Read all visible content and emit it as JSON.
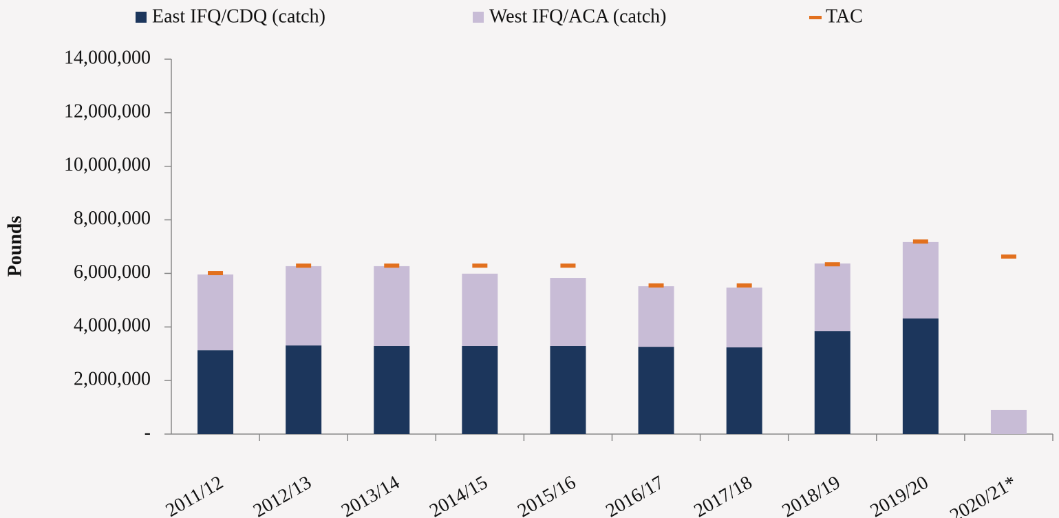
{
  "chart_data": {
    "type": "bar",
    "stacked": true,
    "y_label": "Pounds",
    "categories": [
      "2011/12",
      "2012/13",
      "2013/14",
      "2014/15",
      "2015/16",
      "2016/17",
      "2017/18",
      "2018/19",
      "2019/20",
      "2020/21*"
    ],
    "series": [
      {
        "name": "East IFQ/CDQ (catch)",
        "color": "#1c365c",
        "values": [
          3130000,
          3310000,
          3290000,
          3290000,
          3290000,
          3260000,
          3240000,
          3850000,
          4320000,
          0
        ]
      },
      {
        "name": "West IFQ/ACA (catch)",
        "color": "#c8bcd6",
        "values": [
          2830000,
          2960000,
          2980000,
          2700000,
          2540000,
          2260000,
          2230000,
          2520000,
          2850000,
          900000
        ]
      },
      {
        "name": "TAC",
        "color": "#e2701e",
        "marker": "dash",
        "values": [
          6010000,
          6290000,
          6290000,
          6290000,
          6290000,
          5550000,
          5550000,
          6340000,
          7190000,
          6630000
        ]
      }
    ],
    "ylim": [
      0,
      14000000
    ],
    "yticks": [
      {
        "value": 0,
        "label": "-"
      },
      {
        "value": 2000000,
        "label": "2,000,000"
      },
      {
        "value": 4000000,
        "label": "4,000,000"
      },
      {
        "value": 6000000,
        "label": "6,000,000"
      },
      {
        "value": 8000000,
        "label": "8,000,000"
      },
      {
        "value": 10000000,
        "label": "10,000,000"
      },
      {
        "value": 12000000,
        "label": "12,000,000"
      },
      {
        "value": 14000000,
        "label": "14,000,000"
      }
    ],
    "legend": "top"
  }
}
